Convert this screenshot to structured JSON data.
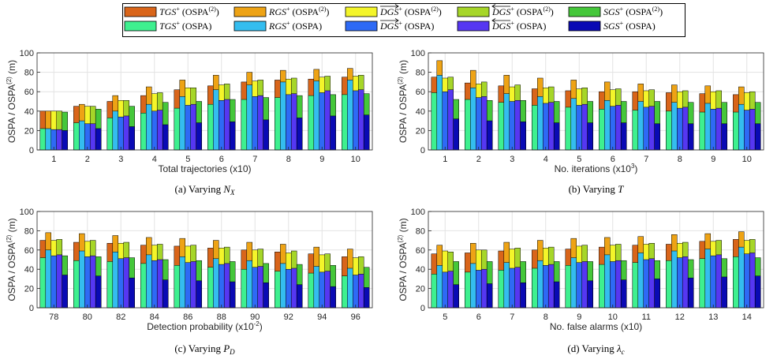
{
  "colors": {
    "TGS_ospa2": "#D9651A",
    "RGS_ospa2": "#EEA315",
    "DGSf_ospa2": "#F4F52A",
    "DGSb_ospa2": "#A6D628",
    "SGS_ospa2": "#45C73A",
    "TGS_ospa": "#3EF08F",
    "RGS_ospa": "#34BDEF",
    "DGSf_ospa": "#2E6AF5",
    "DGSb_ospa": "#5637F2",
    "SGS_ospa": "#0A0AB4"
  },
  "legend": [
    {
      "key": "TGS_ospa2",
      "name": "TGS",
      "arrow": "none",
      "suffix": "(OSPA",
      "sup": "(2)",
      "close": ")"
    },
    {
      "key": "RGS_ospa2",
      "name": "RGS",
      "arrow": "none",
      "suffix": "(OSPA",
      "sup": "(2)",
      "close": ")"
    },
    {
      "key": "DGSf_ospa2",
      "name": "DGS",
      "arrow": "right",
      "suffix": "(OSPA",
      "sup": "(2)",
      "close": ")"
    },
    {
      "key": "DGSb_ospa2",
      "name": "DGS",
      "arrow": "left",
      "suffix": "(OSPA",
      "sup": "(2)",
      "close": ")"
    },
    {
      "key": "SGS_ospa2",
      "name": "SGS",
      "arrow": "none",
      "suffix": "(OSPA",
      "sup": "(2)",
      "close": ")"
    },
    {
      "key": "TGS_ospa",
      "name": "TGS",
      "arrow": "none",
      "suffix": "(OSPA)",
      "sup": "",
      "close": ""
    },
    {
      "key": "RGS_ospa",
      "name": "RGS",
      "arrow": "none",
      "suffix": "(OSPA)",
      "sup": "",
      "close": ""
    },
    {
      "key": "DGSf_ospa",
      "name": "DGS",
      "arrow": "right",
      "suffix": "(OSPA)",
      "sup": "",
      "close": ""
    },
    {
      "key": "DGSb_ospa",
      "name": "DGS",
      "arrow": "left",
      "suffix": "(OSPA)",
      "sup": "",
      "close": ""
    },
    {
      "key": "SGS_ospa",
      "name": "SGS",
      "arrow": "none",
      "suffix": "(OSPA)",
      "sup": "",
      "close": ""
    }
  ],
  "chart_data": [
    {
      "type": "bar",
      "caption": "(a) Varying N_X",
      "xlabel": "Total trajectories (x10)",
      "ylabel": "OSPA / OSPA(2) (m)",
      "ylim": [
        0,
        100
      ],
      "yticks": [
        0,
        20,
        40,
        60,
        80,
        100
      ],
      "grid": true,
      "categories": [
        "1",
        "2",
        "3",
        "4",
        "5",
        "6",
        "7",
        "8",
        "9",
        "10"
      ],
      "series_ospa2": {
        "TGS": [
          40,
          45,
          50,
          56,
          62,
          66,
          70,
          72,
          73,
          75
        ],
        "RGS": [
          40,
          47,
          56,
          65,
          72,
          77,
          80,
          82,
          83,
          84
        ],
        "DGSf": [
          40,
          45,
          51,
          58,
          64,
          67,
          71,
          73,
          75,
          76
        ],
        "DGSb": [
          40,
          45,
          51,
          59,
          64,
          68,
          72,
          74,
          76,
          77
        ],
        "SGS": [
          39,
          42,
          45,
          49,
          50,
          52,
          54,
          56,
          57,
          58
        ]
      },
      "series_ospa": {
        "TGS": [
          22,
          28,
          33,
          38,
          43,
          47,
          52,
          54,
          56,
          57
        ],
        "RGS": [
          22,
          30,
          40,
          47,
          55,
          62,
          67,
          70,
          71,
          72
        ],
        "DGSf": [
          21,
          27,
          34,
          40,
          46,
          51,
          55,
          57,
          59,
          61
        ],
        "DGSb": [
          21,
          27,
          35,
          41,
          47,
          52,
          56,
          58,
          61,
          62
        ],
        "SGS": [
          20,
          22,
          24,
          26,
          28,
          29,
          31,
          33,
          35,
          36
        ]
      }
    },
    {
      "type": "bar",
      "caption": "(b) Varying T",
      "xlabel": "No. iterations (x10^3)",
      "ylabel": "OSPA / OSPA(2) (m)",
      "ylim": [
        0,
        100
      ],
      "yticks": [
        0,
        20,
        40,
        60,
        80,
        100
      ],
      "grid": true,
      "categories": [
        "1",
        "2",
        "3",
        "4",
        "5",
        "6",
        "7",
        "8",
        "9",
        "10"
      ],
      "series_ospa2": {
        "TGS": [
          75,
          69,
          66,
          63,
          61,
          60,
          60,
          59,
          58,
          57
        ],
        "RGS": [
          92,
          82,
          77,
          74,
          72,
          70,
          68,
          67,
          66,
          65
        ],
        "DGSf": [
          74,
          68,
          65,
          64,
          63,
          62,
          61,
          60,
          60,
          59
        ],
        "DGSb": [
          75,
          70,
          67,
          65,
          64,
          63,
          62,
          61,
          61,
          60
        ],
        "SGS": [
          52,
          51,
          51,
          50,
          50,
          50,
          50,
          49,
          49,
          49
        ]
      },
      "series_ospa": {
        "TGS": [
          59,
          52,
          49,
          46,
          44,
          42,
          41,
          40,
          39,
          39
        ],
        "RGS": [
          77,
          64,
          58,
          55,
          53,
          51,
          50,
          49,
          48,
          47
        ],
        "DGSf": [
          60,
          54,
          50,
          48,
          46,
          45,
          44,
          43,
          42,
          41
        ],
        "DGSb": [
          62,
          55,
          51,
          49,
          47,
          46,
          45,
          44,
          43,
          42
        ],
        "SGS": [
          32,
          30,
          29,
          28,
          28,
          28,
          27,
          27,
          27,
          27
        ]
      }
    },
    {
      "type": "bar",
      "caption": "(c) Varying P_D",
      "xlabel": "Detection probability (x10^-2)",
      "ylabel": "OSPA / OSPA(2) (m)",
      "ylim": [
        0,
        100
      ],
      "yticks": [
        0,
        20,
        40,
        60,
        80,
        100
      ],
      "grid": true,
      "categories": [
        "78",
        "80",
        "82",
        "84",
        "86",
        "88",
        "90",
        "92",
        "94",
        "96"
      ],
      "series_ospa2": {
        "TGS": [
          70,
          68,
          67,
          65,
          64,
          62,
          60,
          58,
          56,
          53
        ],
        "RGS": [
          78,
          77,
          75,
          73,
          72,
          70,
          68,
          66,
          63,
          61
        ],
        "DGSf": [
          70,
          69,
          67,
          65,
          64,
          62,
          60,
          57,
          55,
          52
        ],
        "DGSb": [
          71,
          70,
          68,
          66,
          65,
          63,
          61,
          59,
          56,
          53
        ],
        "SGS": [
          54,
          53,
          52,
          50,
          49,
          48,
          46,
          45,
          44,
          42
        ]
      },
      "series_ospa": {
        "TGS": [
          52,
          49,
          48,
          46,
          44,
          42,
          40,
          38,
          36,
          33
        ],
        "RGS": [
          60,
          59,
          58,
          55,
          53,
          51,
          49,
          46,
          43,
          41
        ],
        "DGSf": [
          54,
          53,
          51,
          49,
          47,
          45,
          42,
          40,
          37,
          34
        ],
        "DGSb": [
          55,
          54,
          52,
          50,
          48,
          46,
          43,
          41,
          38,
          35
        ],
        "SGS": [
          34,
          33,
          31,
          29,
          28,
          27,
          26,
          24,
          22,
          21
        ]
      }
    },
    {
      "type": "bar",
      "caption": "(d) Varying λ_c",
      "xlabel": "No. false alarms (x10)",
      "ylabel": "OSPA / OSPA(2) (m)",
      "ylim": [
        0,
        100
      ],
      "yticks": [
        0,
        20,
        40,
        60,
        80,
        100
      ],
      "grid": true,
      "categories": [
        "5",
        "6",
        "7",
        "8",
        "9",
        "10",
        "11",
        "12",
        "13",
        "14"
      ],
      "series_ospa2": {
        "TGS": [
          56,
          57,
          59,
          60,
          61,
          63,
          65,
          66,
          69,
          71
        ],
        "RGS": [
          65,
          67,
          68,
          70,
          72,
          73,
          74,
          76,
          77,
          79
        ],
        "DGSf": [
          59,
          60,
          61,
          62,
          64,
          65,
          66,
          67,
          69,
          70
        ],
        "DGSb": [
          58,
          60,
          62,
          63,
          65,
          66,
          67,
          68,
          70,
          71
        ],
        "SGS": [
          48,
          48,
          48,
          48,
          48,
          49,
          49,
          50,
          51,
          52
        ]
      },
      "series_ospa": {
        "TGS": [
          35,
          37,
          39,
          41,
          44,
          45,
          47,
          49,
          51,
          53
        ],
        "RGS": [
          44,
          46,
          47,
          49,
          52,
          55,
          57,
          59,
          61,
          63
        ],
        "DGSf": [
          37,
          39,
          41,
          44,
          47,
          48,
          50,
          52,
          54,
          56
        ],
        "DGSb": [
          38,
          40,
          42,
          45,
          48,
          49,
          51,
          53,
          55,
          57
        ],
        "SGS": [
          24,
          25,
          26,
          27,
          28,
          29,
          30,
          31,
          32,
          33
        ]
      }
    }
  ]
}
